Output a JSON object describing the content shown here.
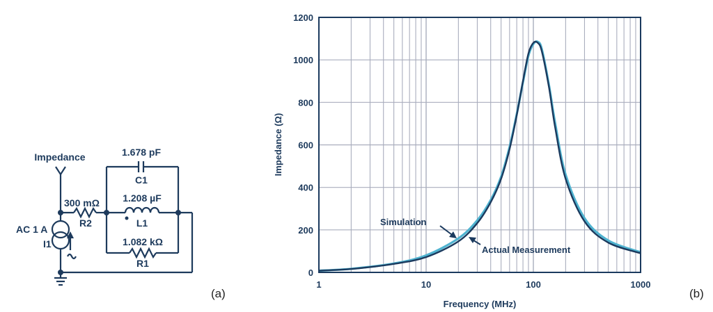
{
  "circuit": {
    "output_label": "Impedance",
    "source_label": "AC 1 A",
    "source_name": "I1",
    "r2_value": "300 mΩ",
    "r2_name": "R2",
    "c1_value": "1.678 pF",
    "c1_name": "C1",
    "l1_value": "1.208 µF",
    "l1_name": "L1",
    "r1_value": "1.082 kΩ",
    "r1_name": "R1",
    "panel_label": "(a)"
  },
  "chart_data": {
    "type": "line",
    "xlabel": "Frequency (MHz)",
    "ylabel": "Impedance (Ω)",
    "xscale": "log",
    "xlim": [
      1,
      1000
    ],
    "ylim": [
      0,
      1200
    ],
    "x_tick_labels": [
      "1",
      "10",
      "100",
      "1000"
    ],
    "y_tick_labels": [
      "0",
      "200",
      "400",
      "600",
      "800",
      "1000",
      "1200"
    ],
    "series": [
      {
        "name": "Simulation",
        "color": "#1b3a5e",
        "x": [
          1,
          2,
          5,
          10,
          20,
          30,
          40,
          50,
          60,
          70,
          80,
          90,
          100,
          110,
          120,
          140,
          160,
          200,
          300,
          500,
          1000
        ],
        "y": [
          8,
          16,
          40,
          72,
          146,
          232,
          330,
          440,
          580,
          740,
          900,
          1030,
          1080,
          1080,
          1040,
          870,
          680,
          440,
          240,
          140,
          90
        ]
      },
      {
        "name": "Actual Measurement",
        "color": "#4fb3d0",
        "x": [
          1,
          2,
          5,
          10,
          20,
          30,
          40,
          50,
          60,
          70,
          80,
          90,
          100,
          110,
          120,
          140,
          160,
          200,
          300,
          500,
          1000
        ],
        "y": [
          8,
          17,
          42,
          80,
          160,
          245,
          340,
          450,
          590,
          745,
          895,
          1020,
          1075,
          1085,
          1050,
          880,
          700,
          460,
          255,
          150,
          95
        ]
      }
    ],
    "annotations": [
      "Simulation",
      "Actual Measurement"
    ],
    "panel_label": "(b)"
  }
}
